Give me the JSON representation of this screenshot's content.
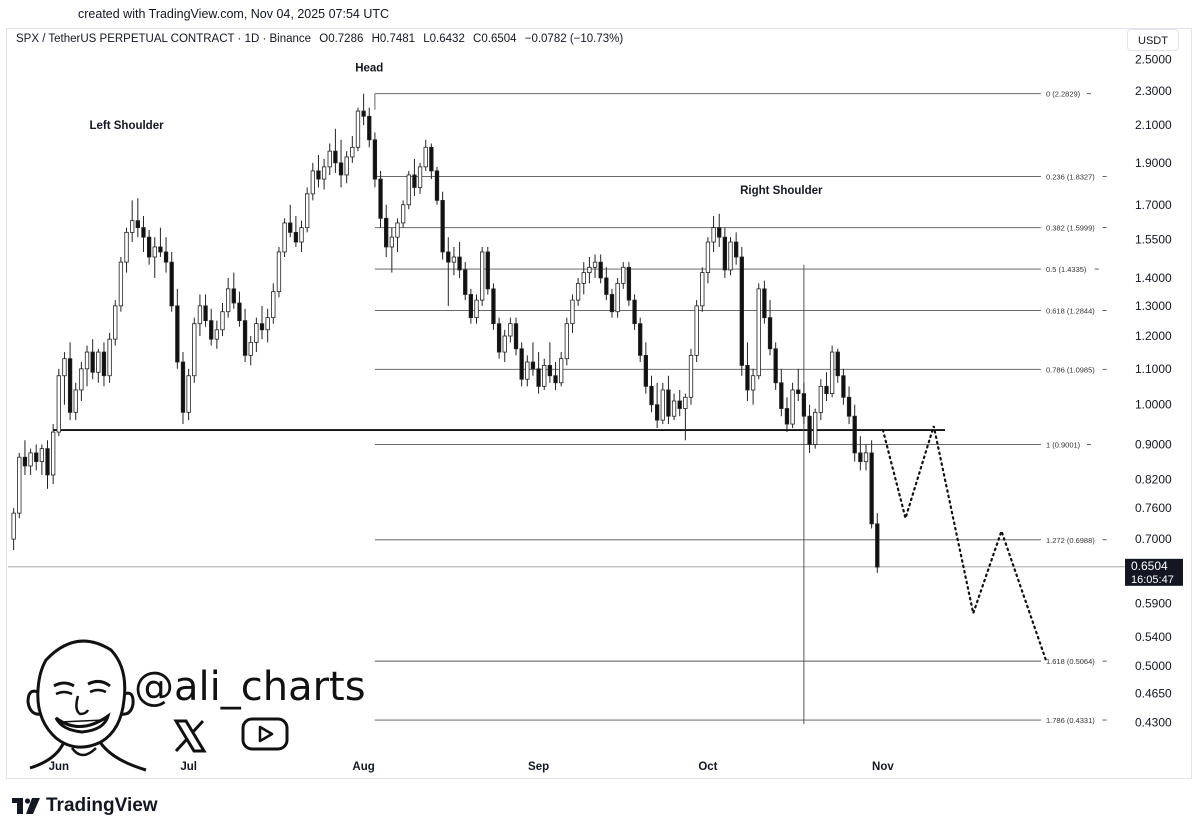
{
  "header": {
    "created": "created with TradingView.com, Nov 04, 2025 07:54 UTC",
    "symbol": "SPX / TetherUS PERPETUAL CONTRACT · 1D · Binance",
    "open": "O0.7286",
    "high": "H0.7481",
    "low": "L0.6432",
    "close": "C0.6504",
    "change": "−0.0782 (−10.73%)",
    "currency": "USDT"
  },
  "branding": {
    "handle": "@ali_charts",
    "logo_text": "TradingView",
    "icons": [
      "x-logo-icon",
      "youtube-icon",
      "avatar-illustration",
      "tradingview-logo-icon"
    ]
  },
  "chart_data": {
    "type": "candlestick",
    "y_scale": "log",
    "ylim": [
      0.4,
      2.55
    ],
    "y_ticks": [
      "2.5000",
      "2.3000",
      "2.1000",
      "1.9000",
      "1.7000",
      "1.5500",
      "1.4000",
      "1.3000",
      "1.2000",
      "1.1000",
      "1.0000",
      "0.9000",
      "0.8200",
      "0.7600",
      "0.7000",
      "0.5900",
      "0.5400",
      "0.5000",
      "0.4650",
      "0.4300"
    ],
    "x_labels": [
      {
        "label": "Jun",
        "index": 8
      },
      {
        "label": "Jul",
        "index": 31
      },
      {
        "label": "Aug",
        "index": 62
      },
      {
        "label": "Sep",
        "index": 93
      },
      {
        "label": "Oct",
        "index": 123
      },
      {
        "label": "Nov",
        "index": 154
      }
    ],
    "x_index_range": [
      -1,
      196
    ],
    "last_price": {
      "value": 0.6504,
      "label": "0.6504",
      "countdown": "16:05:47"
    },
    "annotations": [
      {
        "text": "Left Shoulder",
        "index": 20,
        "price": 2.08
      },
      {
        "text": "Head",
        "index": 63,
        "price": 2.42
      },
      {
        "text": "Right Shoulder",
        "index": 136,
        "price": 1.75
      }
    ],
    "neckline": {
      "price": 0.935,
      "from_index": 7,
      "to_index": 165
    },
    "vertical_marker_index": 140,
    "fibonacci": {
      "from_index": 64,
      "to_index": 182,
      "levels": [
        {
          "label": "0 (2.2829)",
          "value": 2.2829
        },
        {
          "label": "0.236 (1.8327)",
          "value": 1.8327
        },
        {
          "label": "0.382 (1.5999)",
          "value": 1.5999
        },
        {
          "label": "0.5 (1.4335)",
          "value": 1.4335
        },
        {
          "label": "0.618 (1.2844)",
          "value": 1.2844
        },
        {
          "label": "0.786 (1.0985)",
          "value": 1.0985
        },
        {
          "label": "1 (0.9001)",
          "value": 0.9001
        },
        {
          "label": "1.272 (0.6988)",
          "value": 0.6988
        },
        {
          "label": "1.618 (0.5064)",
          "value": 0.5064
        },
        {
          "label": "1.786 (0.4331)",
          "value": 0.4331
        }
      ]
    },
    "projection_path": [
      {
        "index": 154,
        "price": 0.935
      },
      {
        "index": 158,
        "price": 0.74
      },
      {
        "index": 163,
        "price": 0.945
      },
      {
        "index": 170,
        "price": 0.575
      },
      {
        "index": 175,
        "price": 0.715
      },
      {
        "index": 183,
        "price": 0.505
      }
    ],
    "candles": [
      [
        0.7,
        0.76,
        0.68,
        0.75
      ],
      [
        0.75,
        0.88,
        0.74,
        0.87
      ],
      [
        0.87,
        0.91,
        0.83,
        0.85
      ],
      [
        0.85,
        0.89,
        0.83,
        0.88
      ],
      [
        0.88,
        0.9,
        0.84,
        0.86
      ],
      [
        0.86,
        0.9,
        0.83,
        0.89
      ],
      [
        0.89,
        0.91,
        0.8,
        0.83
      ],
      [
        0.83,
        0.95,
        0.81,
        0.93
      ],
      [
        0.93,
        1.1,
        0.92,
        1.08
      ],
      [
        1.08,
        1.15,
        1.0,
        1.13
      ],
      [
        1.13,
        1.18,
        0.96,
        0.98
      ],
      [
        0.98,
        1.06,
        0.96,
        1.04
      ],
      [
        1.04,
        1.12,
        1.01,
        1.1
      ],
      [
        1.1,
        1.17,
        1.05,
        1.15
      ],
      [
        1.15,
        1.19,
        1.07,
        1.09
      ],
      [
        1.09,
        1.16,
        1.06,
        1.15
      ],
      [
        1.15,
        1.18,
        1.05,
        1.08
      ],
      [
        1.08,
        1.21,
        1.06,
        1.19
      ],
      [
        1.19,
        1.32,
        1.17,
        1.3
      ],
      [
        1.3,
        1.48,
        1.28,
        1.46
      ],
      [
        1.46,
        1.6,
        1.42,
        1.58
      ],
      [
        1.58,
        1.72,
        1.54,
        1.63
      ],
      [
        1.63,
        1.73,
        1.56,
        1.6
      ],
      [
        1.6,
        1.65,
        1.5,
        1.56
      ],
      [
        1.56,
        1.59,
        1.45,
        1.48
      ],
      [
        1.48,
        1.56,
        1.4,
        1.52
      ],
      [
        1.52,
        1.6,
        1.48,
        1.5
      ],
      [
        1.5,
        1.56,
        1.42,
        1.46
      ],
      [
        1.46,
        1.5,
        1.28,
        1.3
      ],
      [
        1.3,
        1.36,
        1.1,
        1.12
      ],
      [
        1.12,
        1.15,
        0.95,
        0.98
      ],
      [
        0.98,
        1.1,
        0.96,
        1.08
      ],
      [
        1.08,
        1.26,
        1.06,
        1.24
      ],
      [
        1.24,
        1.34,
        1.2,
        1.3
      ],
      [
        1.3,
        1.34,
        1.23,
        1.25
      ],
      [
        1.25,
        1.29,
        1.17,
        1.19
      ],
      [
        1.19,
        1.25,
        1.16,
        1.22
      ],
      [
        1.22,
        1.31,
        1.2,
        1.28
      ],
      [
        1.28,
        1.4,
        1.26,
        1.36
      ],
      [
        1.36,
        1.42,
        1.29,
        1.31
      ],
      [
        1.31,
        1.35,
        1.23,
        1.25
      ],
      [
        1.25,
        1.29,
        1.12,
        1.14
      ],
      [
        1.14,
        1.2,
        1.11,
        1.18
      ],
      [
        1.18,
        1.26,
        1.15,
        1.24
      ],
      [
        1.24,
        1.3,
        1.19,
        1.22
      ],
      [
        1.22,
        1.29,
        1.18,
        1.26
      ],
      [
        1.26,
        1.38,
        1.24,
        1.35
      ],
      [
        1.35,
        1.52,
        1.33,
        1.5
      ],
      [
        1.5,
        1.64,
        1.48,
        1.62
      ],
      [
        1.62,
        1.7,
        1.56,
        1.58
      ],
      [
        1.58,
        1.65,
        1.52,
        1.54
      ],
      [
        1.54,
        1.63,
        1.5,
        1.6
      ],
      [
        1.6,
        1.78,
        1.58,
        1.75
      ],
      [
        1.75,
        1.9,
        1.72,
        1.86
      ],
      [
        1.86,
        1.94,
        1.78,
        1.82
      ],
      [
        1.82,
        1.92,
        1.77,
        1.88
      ],
      [
        1.88,
        2.0,
        1.84,
        1.96
      ],
      [
        1.96,
        2.08,
        1.85,
        1.9
      ],
      [
        1.9,
        2.02,
        1.78,
        1.84
      ],
      [
        1.84,
        1.96,
        1.8,
        1.93
      ],
      [
        1.93,
        2.04,
        1.9,
        1.98
      ],
      [
        1.98,
        2.2,
        1.96,
        2.18
      ],
      [
        2.18,
        2.283,
        2.1,
        2.15
      ],
      [
        2.15,
        2.2,
        1.98,
        2.02
      ],
      [
        2.02,
        2.06,
        1.78,
        1.82
      ],
      [
        1.82,
        1.86,
        1.6,
        1.64
      ],
      [
        1.64,
        1.7,
        1.48,
        1.52
      ],
      [
        1.52,
        1.6,
        1.42,
        1.56
      ],
      [
        1.56,
        1.64,
        1.5,
        1.62
      ],
      [
        1.62,
        1.72,
        1.6,
        1.7
      ],
      [
        1.7,
        1.86,
        1.68,
        1.84
      ],
      [
        1.84,
        1.92,
        1.74,
        1.78
      ],
      [
        1.78,
        1.9,
        1.75,
        1.88
      ],
      [
        1.88,
        2.02,
        1.86,
        1.98
      ],
      [
        1.98,
        2.0,
        1.82,
        1.86
      ],
      [
        1.86,
        1.88,
        1.7,
        1.72
      ],
      [
        1.72,
        1.76,
        1.47,
        1.5
      ],
      [
        1.5,
        1.56,
        1.3,
        1.46
      ],
      [
        1.46,
        1.52,
        1.41,
        1.48
      ],
      [
        1.48,
        1.54,
        1.4,
        1.43
      ],
      [
        1.43,
        1.46,
        1.32,
        1.34
      ],
      [
        1.34,
        1.36,
        1.24,
        1.26
      ],
      [
        1.26,
        1.34,
        1.24,
        1.32
      ],
      [
        1.32,
        1.52,
        1.3,
        1.5
      ],
      [
        1.5,
        1.52,
        1.34,
        1.36
      ],
      [
        1.36,
        1.38,
        1.22,
        1.24
      ],
      [
        1.24,
        1.26,
        1.13,
        1.15
      ],
      [
        1.15,
        1.22,
        1.12,
        1.2
      ],
      [
        1.2,
        1.26,
        1.18,
        1.24
      ],
      [
        1.24,
        1.26,
        1.14,
        1.16
      ],
      [
        1.16,
        1.18,
        1.05,
        1.07
      ],
      [
        1.07,
        1.14,
        1.05,
        1.12
      ],
      [
        1.12,
        1.18,
        1.08,
        1.1
      ],
      [
        1.1,
        1.15,
        1.03,
        1.05
      ],
      [
        1.05,
        1.13,
        1.04,
        1.11
      ],
      [
        1.11,
        1.18,
        1.06,
        1.08
      ],
      [
        1.08,
        1.12,
        1.04,
        1.06
      ],
      [
        1.06,
        1.15,
        1.05,
        1.13
      ],
      [
        1.13,
        1.26,
        1.11,
        1.24
      ],
      [
        1.24,
        1.34,
        1.21,
        1.32
      ],
      [
        1.32,
        1.4,
        1.3,
        1.38
      ],
      [
        1.38,
        1.46,
        1.34,
        1.42
      ],
      [
        1.42,
        1.48,
        1.38,
        1.44
      ],
      [
        1.44,
        1.49,
        1.4,
        1.46
      ],
      [
        1.46,
        1.49,
        1.38,
        1.4
      ],
      [
        1.4,
        1.44,
        1.32,
        1.34
      ],
      [
        1.34,
        1.36,
        1.26,
        1.28
      ],
      [
        1.28,
        1.4,
        1.26,
        1.38
      ],
      [
        1.38,
        1.46,
        1.36,
        1.44
      ],
      [
        1.44,
        1.46,
        1.3,
        1.32
      ],
      [
        1.32,
        1.34,
        1.22,
        1.24
      ],
      [
        1.24,
        1.26,
        1.12,
        1.14
      ],
      [
        1.14,
        1.18,
        1.03,
        1.05
      ],
      [
        1.05,
        1.08,
        0.98,
        1.0
      ],
      [
        1.0,
        1.06,
        0.94,
        0.96
      ],
      [
        0.96,
        1.06,
        0.95,
        1.04
      ],
      [
        1.04,
        1.08,
        0.95,
        0.97
      ],
      [
        0.97,
        1.03,
        0.96,
        1.01
      ],
      [
        1.01,
        1.04,
        0.97,
        0.99
      ],
      [
        0.99,
        1.03,
        0.91,
        1.02
      ],
      [
        1.02,
        1.16,
        1.0,
        1.14
      ],
      [
        1.14,
        1.32,
        1.12,
        1.3
      ],
      [
        1.3,
        1.44,
        1.28,
        1.42
      ],
      [
        1.42,
        1.56,
        1.38,
        1.54
      ],
      [
        1.54,
        1.65,
        1.5,
        1.6
      ],
      [
        1.6,
        1.66,
        1.52,
        1.56
      ],
      [
        1.56,
        1.6,
        1.4,
        1.43
      ],
      [
        1.43,
        1.56,
        1.41,
        1.54
      ],
      [
        1.54,
        1.58,
        1.45,
        1.48
      ],
      [
        1.48,
        1.52,
        1.08,
        1.11
      ],
      [
        1.11,
        1.18,
        1.01,
        1.04
      ],
      [
        1.04,
        1.1,
        1.0,
        1.08
      ],
      [
        1.08,
        1.38,
        1.07,
        1.36
      ],
      [
        1.36,
        1.39,
        1.24,
        1.26
      ],
      [
        1.26,
        1.32,
        1.14,
        1.16
      ],
      [
        1.16,
        1.18,
        1.04,
        1.06
      ],
      [
        1.06,
        1.1,
        0.97,
        0.99
      ],
      [
        0.99,
        1.02,
        0.93,
        0.95
      ],
      [
        0.95,
        1.06,
        0.94,
        1.04
      ],
      [
        1.04,
        1.1,
        1.01,
        1.03
      ],
      [
        1.03,
        1.06,
        0.95,
        0.97
      ],
      [
        0.97,
        1.0,
        0.88,
        0.9
      ],
      [
        0.9,
        0.99,
        0.89,
        0.98
      ],
      [
        0.98,
        1.07,
        0.96,
        1.05
      ],
      [
        1.05,
        1.09,
        1.01,
        1.03
      ],
      [
        1.03,
        1.17,
        1.02,
        1.15
      ],
      [
        1.15,
        1.16,
        1.06,
        1.08
      ],
      [
        1.08,
        1.1,
        1.0,
        1.02
      ],
      [
        1.02,
        1.05,
        0.95,
        0.97
      ],
      [
        0.97,
        1.0,
        0.86,
        0.88
      ],
      [
        0.88,
        0.92,
        0.84,
        0.86
      ],
      [
        0.86,
        0.9,
        0.84,
        0.88
      ],
      [
        0.88,
        0.91,
        0.72,
        0.729
      ],
      [
        0.729,
        0.75,
        0.64,
        0.65
      ]
    ]
  }
}
